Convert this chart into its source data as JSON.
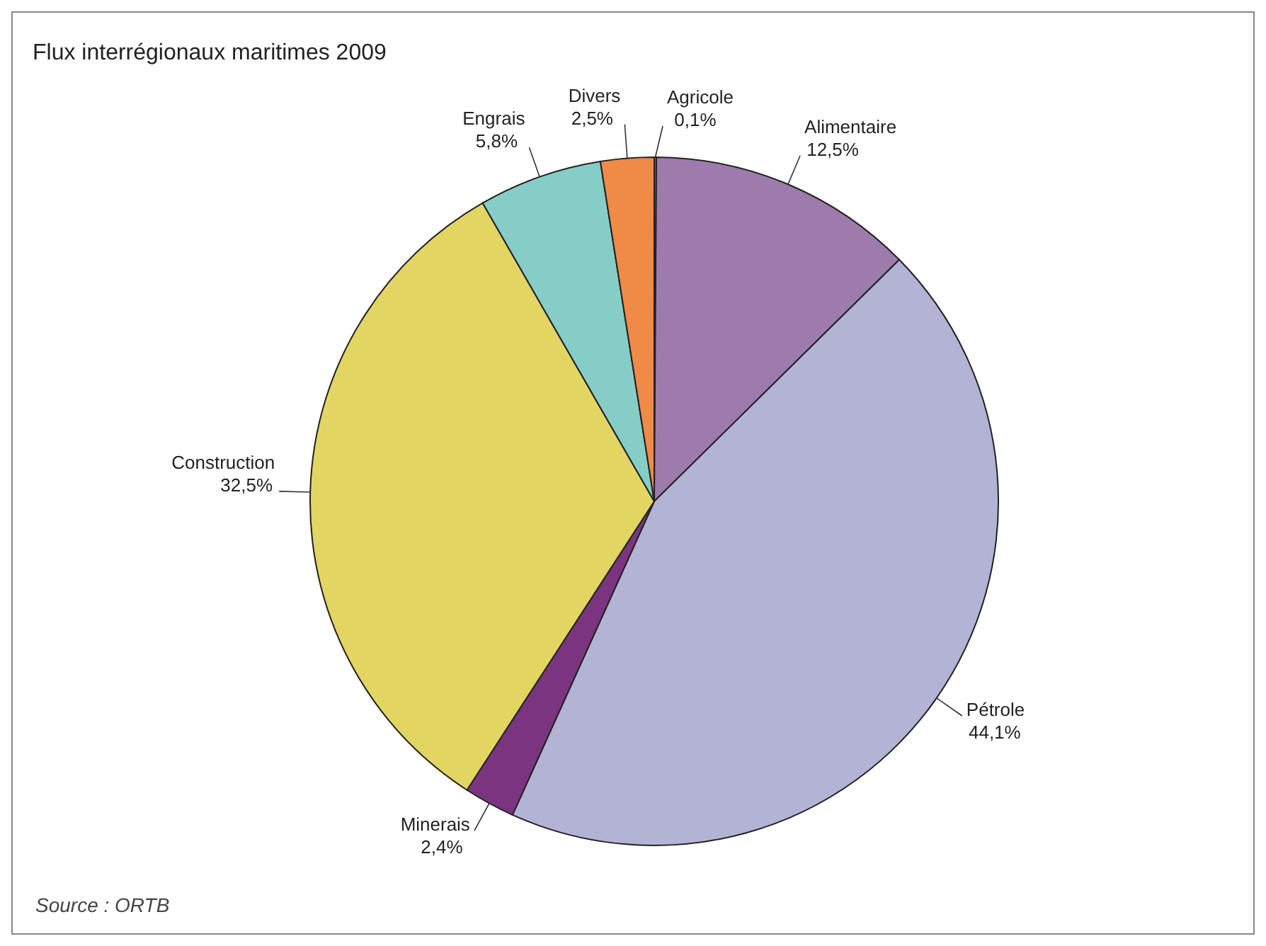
{
  "chart_data": {
    "type": "pie",
    "title": "Flux interrégionaux maritimes 2009",
    "categories": [
      "Agricole",
      "Alimentaire",
      "Pétrole",
      "Minerais",
      "Construction",
      "Engrais",
      "Divers"
    ],
    "values": [
      0.1,
      12.5,
      44.1,
      2.4,
      32.5,
      5.8,
      2.5
    ],
    "value_labels": [
      "0,1%",
      "12,5%",
      "44,1%",
      "2,4%",
      "32,5%",
      "5,8%",
      "2,5%"
    ],
    "colors": [
      "#4f6fa8",
      "#9e7bad",
      "#b3b3d6",
      "#7b3580",
      "#e3d562",
      "#86cdc8",
      "#ef8a47"
    ],
    "annotations": [
      "Source : ORTB"
    ],
    "legend": false
  }
}
